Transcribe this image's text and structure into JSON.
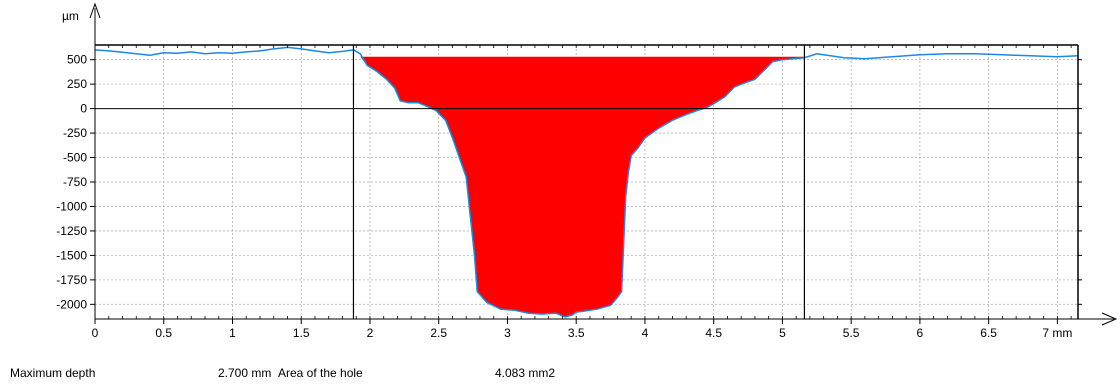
{
  "chart_data": {
    "type": "area",
    "y_unit": "µm",
    "x_unit": "mm",
    "xlim": [
      0,
      7.15
    ],
    "ylim": [
      -2150,
      650
    ],
    "x_ticks": [
      0,
      0.5,
      1,
      1.5,
      2,
      2.5,
      3,
      3.5,
      4,
      4.5,
      5,
      5.5,
      6,
      6.5,
      7
    ],
    "x_tick_labels": [
      "0",
      "0.5",
      "1",
      "1.5",
      "2",
      "2.5",
      "3",
      "3.5",
      "4",
      "4.5",
      "5",
      "5.5",
      "6",
      "6.5",
      "7 mm"
    ],
    "y_ticks": [
      500,
      250,
      0,
      -250,
      -500,
      -750,
      -1000,
      -1250,
      -1500,
      -1750,
      -2000
    ],
    "y_tick_labels": [
      "500",
      "250",
      "0",
      "-250",
      "-500",
      "-750",
      "-1000",
      "-1250",
      "-1500",
      "-1750",
      "-2000"
    ],
    "grid": true,
    "cursors_x": [
      1.88,
      5.16
    ],
    "reference_level": 530,
    "profile": {
      "x": [
        0,
        0.1,
        0.2,
        0.3,
        0.4,
        0.5,
        0.6,
        0.7,
        0.8,
        0.9,
        1.0,
        1.1,
        1.2,
        1.3,
        1.4,
        1.5,
        1.6,
        1.7,
        1.8,
        1.88,
        1.93,
        1.98,
        2.05,
        2.12,
        2.18,
        2.22,
        2.28,
        2.35,
        2.42,
        2.48,
        2.55,
        2.6,
        2.65,
        2.7,
        2.73,
        2.76,
        2.78,
        2.85,
        2.95,
        3.05,
        3.15,
        3.25,
        3.35,
        3.42,
        3.47,
        3.5,
        3.55,
        3.65,
        3.75,
        3.8,
        3.83,
        3.86,
        3.88,
        3.9,
        3.95,
        4.0,
        4.1,
        4.2,
        4.3,
        4.4,
        4.45,
        4.5,
        4.58,
        4.65,
        4.72,
        4.8,
        4.88,
        4.93,
        5.0,
        5.16,
        5.25,
        5.35,
        5.45,
        5.6,
        5.8,
        6.0,
        6.2,
        6.4,
        6.6,
        6.8,
        7.0,
        7.15
      ],
      "y": [
        600,
        590,
        575,
        560,
        545,
        570,
        565,
        580,
        560,
        570,
        565,
        580,
        590,
        610,
        625,
        610,
        590,
        570,
        585,
        600,
        560,
        440,
        380,
        300,
        210,
        80,
        60,
        60,
        20,
        -20,
        -120,
        -300,
        -500,
        -700,
        -1100,
        -1500,
        -1870,
        -1980,
        -2050,
        -2060,
        -2090,
        -2100,
        -2090,
        -2130,
        -2110,
        -2080,
        -2070,
        -2050,
        -2010,
        -1930,
        -1870,
        -900,
        -650,
        -480,
        -400,
        -300,
        -200,
        -120,
        -60,
        -10,
        10,
        50,
        120,
        220,
        260,
        300,
        410,
        480,
        500,
        520,
        560,
        540,
        520,
        510,
        530,
        550,
        560,
        560,
        550,
        540,
        530,
        540
      ]
    }
  },
  "stats": {
    "max_depth_label": "Maximum depth",
    "max_depth_value": "2.700 mm",
    "area_label": "Area of the hole",
    "area_value": "4.083 mm2"
  }
}
